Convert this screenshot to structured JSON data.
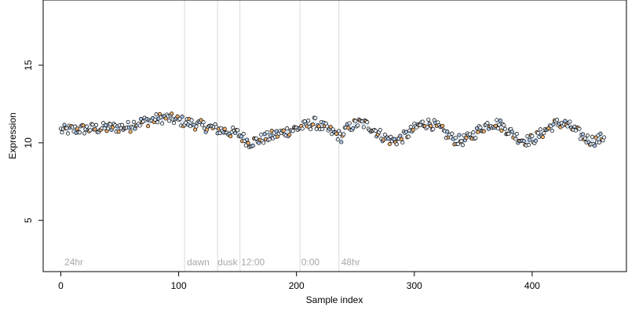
{
  "chart_data": {
    "type": "scatter",
    "title": "",
    "xlabel": "Sample index",
    "ylabel": "Expression",
    "xlim": [
      -15,
      480
    ],
    "ylim": [
      1.7,
      19.2
    ],
    "x_ticks": [
      0,
      100,
      200,
      300,
      400
    ],
    "y_ticks": [
      5,
      10,
      15
    ],
    "x_tick_labels": [
      "0",
      "100",
      "200",
      "300",
      "400"
    ],
    "y_tick_labels": [
      "5",
      "10",
      "15"
    ],
    "grid": false,
    "legend": "none",
    "point_count": 462,
    "colors": {
      "point_fill_light": "#e5eef9",
      "point_fill_blue": "#a9c4e6",
      "point_fill_orange": "#f2b06a",
      "point_stroke": "#000000",
      "vline": "#d9d9d9",
      "annotation": "#a9a9a9",
      "trace_blue": "#a9c4e6",
      "trace_orange": "#f2b06a"
    },
    "vertical_lines_x": [
      105,
      133,
      152,
      203,
      236
    ],
    "annotations": [
      {
        "label": "24hr",
        "x": 3
      },
      {
        "label": "dawn",
        "x": 107
      },
      {
        "label": "dusk",
        "x": 133
      },
      {
        "label": "12:00",
        "x": 153
      },
      {
        "label": "0:00",
        "x": 204
      },
      {
        "label": "48hr",
        "x": 238
      }
    ],
    "trend_notes": "Values hover around 11 from index 0-100, rise to ~11.6 near 80, dip to ~10 near 155, recover to ~11.3 near 215, then oscillate between ~9.8 and ~11.5 until index 462."
  }
}
